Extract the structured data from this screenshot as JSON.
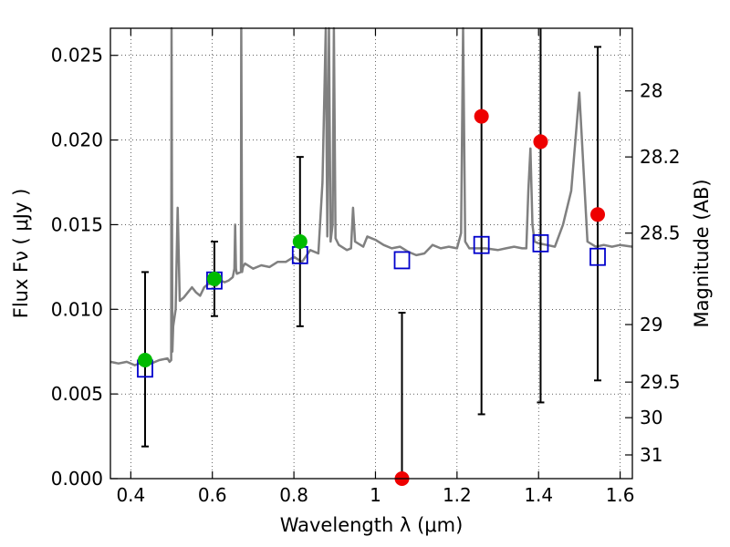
{
  "chart_data": {
    "type": "scatter",
    "title": "",
    "xlabel": "Wavelength  λ (μm)",
    "ylabel": "Flux  Fν  ( μJy )",
    "y2label": "Magnitude (AB)",
    "xlim": [
      0.35,
      1.63
    ],
    "ylim": [
      0.0,
      0.0266
    ],
    "grid": true,
    "x_ticks": [
      0.4,
      0.6,
      0.8,
      1.0,
      1.2,
      1.4,
      1.6
    ],
    "x_tick_labels": [
      "0.4",
      "0.6",
      "0.8",
      "1",
      "1.2",
      "1.4",
      "1.6"
    ],
    "y_ticks": [
      0.0,
      0.005,
      0.01,
      0.015,
      0.02,
      0.025
    ],
    "y_tick_labels": [
      "0.000",
      "0.005",
      "0.010",
      "0.015",
      "0.020",
      "0.025"
    ],
    "y2_ticks": [
      {
        "label": "28",
        "flux": 0.0229
      },
      {
        "label": "28.2",
        "flux": 0.019
      },
      {
        "label": "28.5",
        "flux": 0.0145
      },
      {
        "label": "29",
        "flux": 0.0091
      },
      {
        "label": "29.5",
        "flux": 0.0057
      },
      {
        "label": "30",
        "flux": 0.0036
      },
      {
        "label": "31",
        "flux": 0.0014
      }
    ],
    "colors": {
      "spectrum": "#808080",
      "model_squares": "#0000cc",
      "detections": "#00bb00",
      "upper_limits": "#ee0000",
      "errorbars": "#000000"
    },
    "series": [
      {
        "type": "line",
        "x": [
          0.35,
          0.37,
          0.39,
          0.41,
          0.43,
          0.45,
          0.47,
          0.49,
          0.495,
          0.499,
          0.5,
          0.502,
          0.504,
          0.51,
          0.515,
          0.52,
          0.53,
          0.54,
          0.55,
          0.56,
          0.57,
          0.58,
          0.59,
          0.6,
          0.61,
          0.62,
          0.63,
          0.64,
          0.65,
          0.654,
          0.656,
          0.658,
          0.66,
          0.67,
          0.671,
          0.673,
          0.675,
          0.68,
          0.7,
          0.72,
          0.74,
          0.76,
          0.78,
          0.8,
          0.82,
          0.84,
          0.86,
          0.87,
          0.878,
          0.882,
          0.886,
          0.89,
          0.895,
          0.898,
          0.902,
          0.906,
          0.91,
          0.93,
          0.94,
          0.945,
          0.95,
          0.97,
          0.98,
          0.99,
          1.0,
          1.02,
          1.04,
          1.06,
          1.08,
          1.1,
          1.12,
          1.14,
          1.16,
          1.18,
          1.2,
          1.21,
          1.215,
          1.22,
          1.23,
          1.25,
          1.27,
          1.3,
          1.32,
          1.34,
          1.36,
          1.37,
          1.375,
          1.38,
          1.385,
          1.39,
          1.4,
          1.42,
          1.44,
          1.46,
          1.48,
          1.5,
          1.52,
          1.54,
          1.56,
          1.58,
          1.6,
          1.63
        ],
        "y": [
          0.0069,
          0.0068,
          0.0069,
          0.0067,
          0.0069,
          0.0068,
          0.007,
          0.0071,
          0.0069,
          0.007,
          0.0266,
          0.0075,
          0.009,
          0.01,
          0.016,
          0.0105,
          0.0107,
          0.011,
          0.0113,
          0.011,
          0.0108,
          0.0113,
          0.0115,
          0.0115,
          0.0114,
          0.0117,
          0.0116,
          0.0117,
          0.0119,
          0.0124,
          0.015,
          0.0124,
          0.0121,
          0.0122,
          0.0266,
          0.0122,
          0.0125,
          0.0127,
          0.0124,
          0.0126,
          0.0125,
          0.0128,
          0.0128,
          0.0131,
          0.0128,
          0.0135,
          0.0133,
          0.0175,
          0.0266,
          0.0143,
          0.0266,
          0.014,
          0.015,
          0.0266,
          0.0142,
          0.014,
          0.0138,
          0.0135,
          0.0136,
          0.016,
          0.014,
          0.0137,
          0.0143,
          0.0142,
          0.0141,
          0.0138,
          0.0136,
          0.0137,
          0.0134,
          0.0132,
          0.0133,
          0.0138,
          0.0136,
          0.0137,
          0.0136,
          0.0145,
          0.0266,
          0.014,
          0.0136,
          0.0136,
          0.0136,
          0.0135,
          0.0136,
          0.0137,
          0.0136,
          0.0136,
          0.017,
          0.0195,
          0.015,
          0.014,
          0.0139,
          0.0138,
          0.0137,
          0.015,
          0.017,
          0.0228,
          0.014,
          0.0137,
          0.0138,
          0.0137,
          0.0138,
          0.0137
        ]
      },
      {
        "type": "squares",
        "x": [
          0.435,
          0.605,
          0.815,
          1.065,
          1.26,
          1.405,
          1.545
        ],
        "y": [
          0.0065,
          0.0117,
          0.0132,
          0.0129,
          0.0138,
          0.0139,
          0.0131
        ]
      },
      {
        "type": "errorbar",
        "x": [
          0.435,
          0.605,
          0.815,
          1.065,
          1.26,
          1.405,
          1.545
        ],
        "y": [
          0.007,
          0.0118,
          0.014,
          0.0,
          0.0214,
          0.0199,
          0.0156
        ],
        "y_low": [
          0.0019,
          0.0096,
          0.009,
          0.0,
          0.0038,
          0.0045,
          0.0058
        ],
        "y_high": [
          0.0122,
          0.014,
          0.019,
          0.0098,
          0.0266,
          0.0266,
          0.0255
        ],
        "marker": [
          "green",
          "green",
          "green",
          "red",
          "red",
          "red",
          "red"
        ]
      }
    ]
  }
}
